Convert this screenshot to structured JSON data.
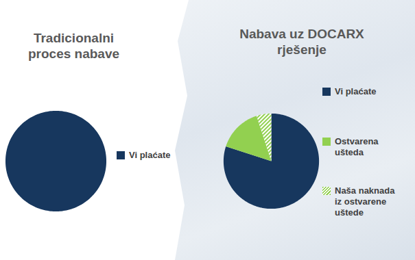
{
  "chart_data": [
    {
      "type": "pie",
      "title": "Tradicionalni proces nabave",
      "legend": "right",
      "series": [
        {
          "name": "Vi plaćate",
          "color": "#17375e",
          "values": [
            100
          ]
        }
      ]
    },
    {
      "type": "pie",
      "title": "Nabava uz DOCARX rješenje",
      "legend": "right",
      "series": [
        {
          "name": "Vi plaćate",
          "color": "#17375e",
          "values": [
            80
          ]
        },
        {
          "name": "Ostvarena ušteda",
          "color": "#92d050",
          "values": [
            15
          ]
        },
        {
          "name": "Naša naknada iz ostvarene uštede",
          "color": "#92d050",
          "line_style": "hatched",
          "values": [
            5
          ]
        }
      ]
    }
  ]
}
